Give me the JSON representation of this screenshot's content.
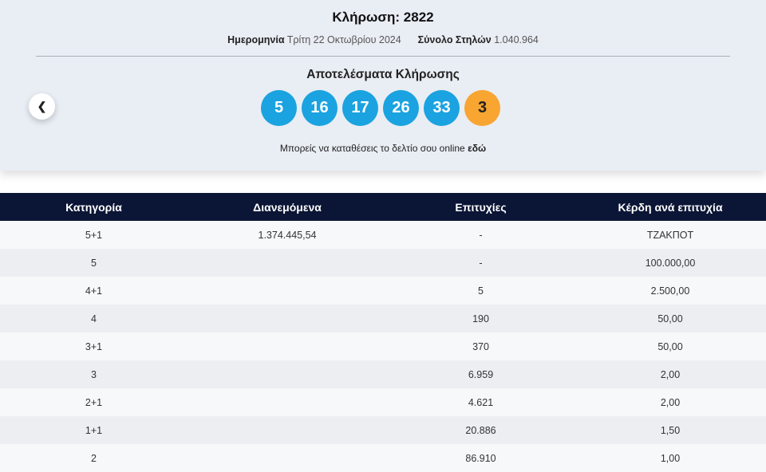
{
  "header": {
    "title": "Κλήρωση: 2822",
    "date_label": "Ημερομηνία",
    "date_value": "Τρίτη 22 Οκτωβρίου 2024",
    "columns_label": "Σύνολο Στηλών",
    "columns_value": "1.040.964"
  },
  "results": {
    "title": "Αποτελέσματα Κλήρωσης",
    "numbers": [
      "5",
      "16",
      "17",
      "26",
      "33"
    ],
    "bonus": "3",
    "online_text": "Μπορείς να καταθέσεις το δελτίο σου online",
    "online_link": "εδώ",
    "prev_icon": "chevron-left-icon"
  },
  "colors": {
    "ball": "#1aa3e0",
    "bonus": "#f8a531",
    "header_bg": "#0b1535"
  },
  "table": {
    "headers": [
      "Κατηγορία",
      "Διανεμόμενα",
      "Επιτυχίες",
      "Κέρδη ανά επιτυχία"
    ],
    "rows": [
      [
        "5+1",
        "1.374.445,54",
        "-",
        "ΤΖΑΚΠΟΤ"
      ],
      [
        "5",
        "",
        "-",
        "100.000,00"
      ],
      [
        "4+1",
        "",
        "5",
        "2.500,00"
      ],
      [
        "4",
        "",
        "190",
        "50,00"
      ],
      [
        "3+1",
        "",
        "370",
        "50,00"
      ],
      [
        "3",
        "",
        "6.959",
        "2,00"
      ],
      [
        "2+1",
        "",
        "4.621",
        "2,00"
      ],
      [
        "1+1",
        "",
        "20.886",
        "1,50"
      ],
      [
        "2",
        "",
        "86.910",
        "1,00"
      ]
    ]
  }
}
